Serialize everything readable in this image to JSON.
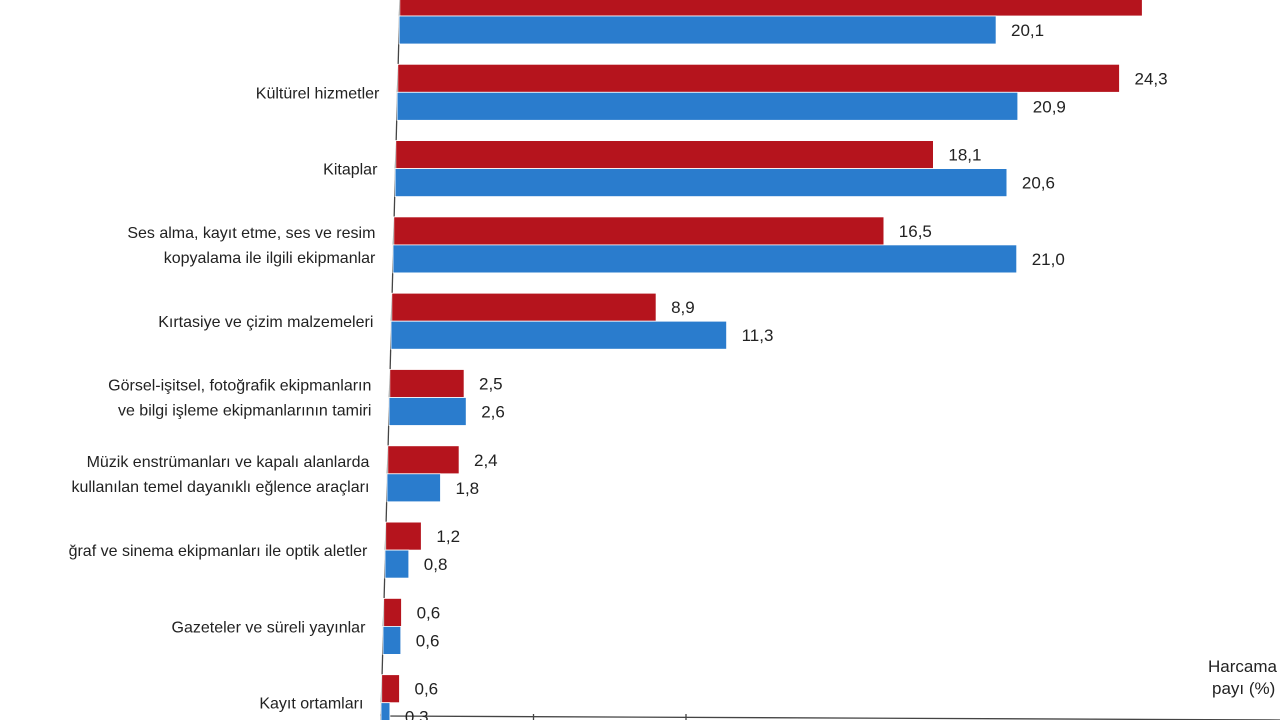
{
  "colors": {
    "series_a": "#b5141d",
    "series_b": "#2a7ccd"
  },
  "axis_note_lines": [
    "Harcama",
    "payı (%)"
  ],
  "chart_data": {
    "type": "bar",
    "orientation": "horizontal",
    "categories": [
      [
        "",
        ""
      ],
      [
        "Kültürel hizmetler"
      ],
      [
        "Kitaplar"
      ],
      [
        "Ses alma, kayıt etme, ses ve resim",
        "kopyalama ile ilgili ekipmanlar"
      ],
      [
        "Kırtasiye ve çizim malzemeleri"
      ],
      [
        "Görsel-işitsel, fotoğrafik ekipmanların",
        "ve bilgi işleme ekipmanlarının tamiri"
      ],
      [
        "Müzik enstrümanları ve kapalı alanlarda",
        "kullanılan temel dayanıklı eğlence araçları"
      ],
      [
        "ğraf ve sinema ekipmanları ile optik aletler"
      ],
      [
        "Gazeteler ve süreli yayınlar"
      ],
      [
        "Kayıt ortamları"
      ]
    ],
    "series": [
      {
        "values": [
          25.0,
          24.3,
          18.1,
          16.5,
          8.9,
          2.5,
          2.4,
          1.2,
          0.6,
          0.6
        ],
        "labels": [
          "",
          "24,3",
          "18,1",
          "16,5",
          "8,9",
          "2,5",
          "2,4",
          "1,2",
          "0,6",
          "0,6"
        ]
      },
      {
        "values": [
          20.1,
          20.9,
          20.6,
          21.0,
          11.3,
          2.6,
          1.8,
          0.8,
          0.6,
          0.3
        ],
        "labels": [
          "20,1",
          "20,9",
          "20,6",
          "21,0",
          "11,3",
          "2,6",
          "1,8",
          "0,8",
          "0,6",
          "0,3"
        ]
      }
    ],
    "xlim": [
      0,
      25
    ],
    "grid": false,
    "legend": "none"
  }
}
